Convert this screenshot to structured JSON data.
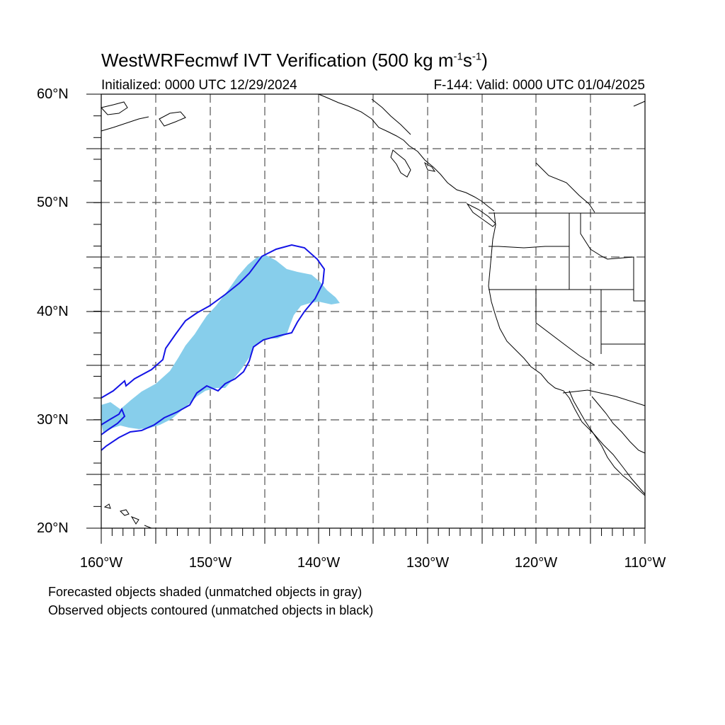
{
  "header": {
    "title_main": "WestWRFecmwf IVT Verification (500 kg m",
    "title_exp1": "-1",
    "title_mid": "s",
    "title_exp2": "-1",
    "title_end": ")",
    "initialized": "Initialized: 0000 UTC 12/29/2024",
    "valid": "F-144: Valid: 0000 UTC 01/04/2025"
  },
  "axes": {
    "lat_labels": [
      "60°N",
      "50°N",
      "40°N",
      "30°N",
      "20°N"
    ],
    "lon_labels": [
      "160°W",
      "150°W",
      "140°W",
      "130°W",
      "120°W",
      "110°W"
    ],
    "lat_range": [
      20,
      60
    ],
    "lon_range": [
      -160,
      -110
    ]
  },
  "legend": {
    "forecast_note": "Forecasted objects shaded (unmatched objects in gray)",
    "observed_note": "Observed objects contoured (unmatched objects in black)"
  },
  "colors": {
    "forecast_fill": "#87ceeb",
    "observed_contour": "#1414e6",
    "coast": "#000000",
    "grid": "#555555"
  }
}
